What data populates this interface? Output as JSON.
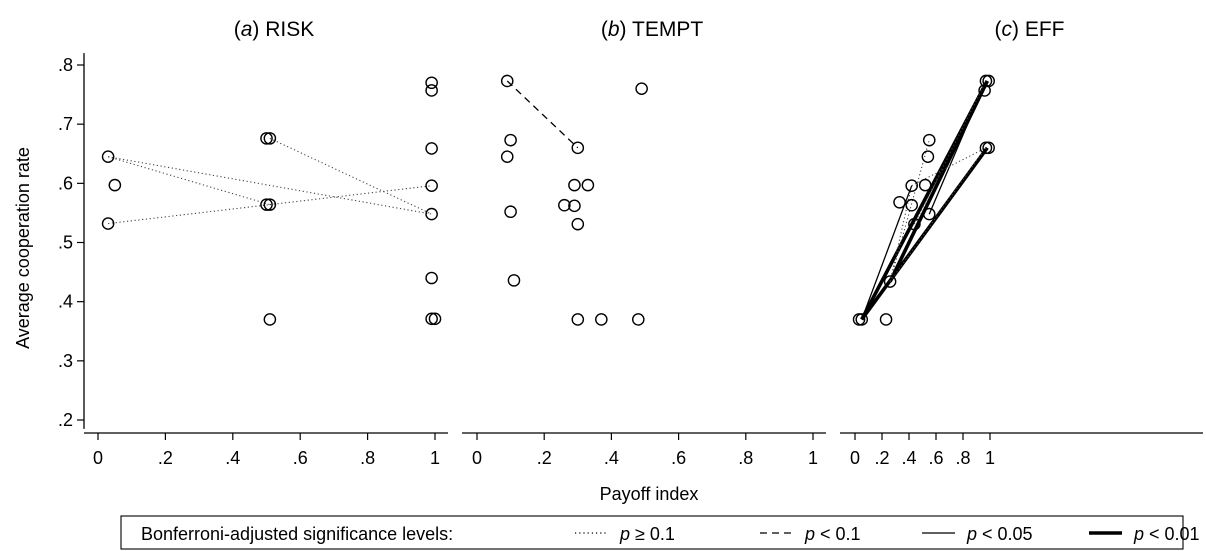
{
  "chart_data": {
    "type": "scatter",
    "ylabel": "Average cooperation rate",
    "xlabel": "Payoff index",
    "ylim": [
      0.2,
      0.8
    ],
    "xlim": [
      0,
      1
    ],
    "yticks": [
      0.2,
      0.3,
      0.4,
      0.5,
      0.6,
      0.7,
      0.8
    ],
    "ytick_labels": [
      ".2",
      ".3",
      ".4",
      ".5",
      ".6",
      ".7",
      ".8"
    ],
    "xticks": [
      0,
      0.2,
      0.4,
      0.6,
      0.8,
      1
    ],
    "xtick_labels": [
      "0",
      ".2",
      ".4",
      ".6",
      ".8",
      "1"
    ],
    "grid": false,
    "legend": {
      "placement": "bottom",
      "title": "Bonferroni-adjusted significance levels:",
      "entries": [
        {
          "style": "dotted",
          "prefix": "p",
          "label": " ≥ 0.1"
        },
        {
          "style": "dashed",
          "prefix": "p",
          "label": " < 0.1"
        },
        {
          "style": "solid",
          "prefix": "p",
          "label": " < 0.05"
        },
        {
          "style": "bold",
          "prefix": "p",
          "label": " < 0.01"
        }
      ]
    },
    "panels": [
      {
        "letter": "a",
        "name": " RISK",
        "points": [
          [
            0.03,
            0.645
          ],
          [
            0.05,
            0.597
          ],
          [
            0.03,
            0.532
          ],
          [
            0.5,
            0.676
          ],
          [
            0.51,
            0.676
          ],
          [
            0.5,
            0.564
          ],
          [
            0.51,
            0.564
          ],
          [
            0.51,
            0.37
          ],
          [
            0.99,
            0.77
          ],
          [
            0.99,
            0.757
          ],
          [
            0.99,
            0.659
          ],
          [
            0.99,
            0.596
          ],
          [
            0.99,
            0.548
          ],
          [
            0.99,
            0.44
          ],
          [
            0.99,
            0.371
          ],
          [
            1.0,
            0.371
          ]
        ],
        "lines": [
          {
            "style": "dotted",
            "from": [
              0.03,
              0.645
            ],
            "to": [
              0.51,
              0.564
            ]
          },
          {
            "style": "dotted",
            "from": [
              0.03,
              0.645
            ],
            "to": [
              0.99,
              0.548
            ]
          },
          {
            "style": "dotted",
            "from": [
              0.03,
              0.532
            ],
            "to": [
              0.51,
              0.564
            ]
          },
          {
            "style": "dotted",
            "from": [
              0.51,
              0.676
            ],
            "to": [
              0.99,
              0.548
            ]
          },
          {
            "style": "dotted",
            "from": [
              0.51,
              0.564
            ],
            "to": [
              0.99,
              0.596
            ]
          }
        ]
      },
      {
        "letter": "b",
        "name": " TEMPT",
        "points": [
          [
            0.09,
            0.773
          ],
          [
            0.1,
            0.673
          ],
          [
            0.09,
            0.645
          ],
          [
            0.1,
            0.552
          ],
          [
            0.11,
            0.436
          ],
          [
            0.3,
            0.66
          ],
          [
            0.29,
            0.597
          ],
          [
            0.33,
            0.597
          ],
          [
            0.26,
            0.563
          ],
          [
            0.29,
            0.562
          ],
          [
            0.3,
            0.531
          ],
          [
            0.3,
            0.37
          ],
          [
            0.37,
            0.37
          ],
          [
            0.49,
            0.76
          ],
          [
            0.48,
            0.37
          ]
        ],
        "lines": [
          {
            "style": "dashed",
            "from": [
              0.09,
              0.773
            ],
            "to": [
              0.3,
              0.66
            ]
          }
        ]
      },
      {
        "letter": "c",
        "name": " EFF",
        "points": [
          [
            0.03,
            0.37
          ],
          [
            0.05,
            0.37
          ],
          [
            0.23,
            0.37
          ],
          [
            0.26,
            0.434
          ],
          [
            0.33,
            0.568
          ],
          [
            0.42,
            0.596
          ],
          [
            0.42,
            0.563
          ],
          [
            0.44,
            0.531
          ],
          [
            0.52,
            0.597
          ],
          [
            0.55,
            0.673
          ],
          [
            0.54,
            0.645
          ],
          [
            0.55,
            0.548
          ],
          [
            0.97,
            0.773
          ],
          [
            0.99,
            0.773
          ],
          [
            0.96,
            0.757
          ],
          [
            0.97,
            0.66
          ],
          [
            0.99,
            0.66
          ]
        ],
        "lines": [
          {
            "style": "bold",
            "from": [
              0.05,
              0.37
            ],
            "to": [
              0.98,
              0.773
            ]
          },
          {
            "style": "bold",
            "from": [
              0.05,
              0.37
            ],
            "to": [
              0.98,
              0.66
            ]
          },
          {
            "style": "bold",
            "from": [
              0.26,
              0.434
            ],
            "to": [
              0.98,
              0.773
            ]
          },
          {
            "style": "solid",
            "from": [
              0.05,
              0.37
            ],
            "to": [
              0.42,
              0.596
            ]
          },
          {
            "style": "solid",
            "from": [
              0.05,
              0.37
            ],
            "to": [
              0.97,
              0.773
            ]
          },
          {
            "style": "solid",
            "from": [
              0.55,
              0.548
            ],
            "to": [
              0.97,
              0.773
            ]
          },
          {
            "style": "dotted",
            "from": [
              0.26,
              0.434
            ],
            "to": [
              0.42,
              0.596
            ]
          },
          {
            "style": "dotted",
            "from": [
              0.26,
              0.434
            ],
            "to": [
              0.55,
              0.673
            ]
          },
          {
            "style": "dotted",
            "from": [
              0.42,
              0.596
            ],
            "to": [
              0.97,
              0.66
            ]
          },
          {
            "style": "dotted",
            "from": [
              0.26,
              0.434
            ],
            "to": [
              0.97,
              0.66
            ]
          },
          {
            "style": "dotted",
            "from": [
              0.44,
              0.531
            ],
            "to": [
              0.97,
              0.773
            ]
          }
        ]
      }
    ]
  }
}
